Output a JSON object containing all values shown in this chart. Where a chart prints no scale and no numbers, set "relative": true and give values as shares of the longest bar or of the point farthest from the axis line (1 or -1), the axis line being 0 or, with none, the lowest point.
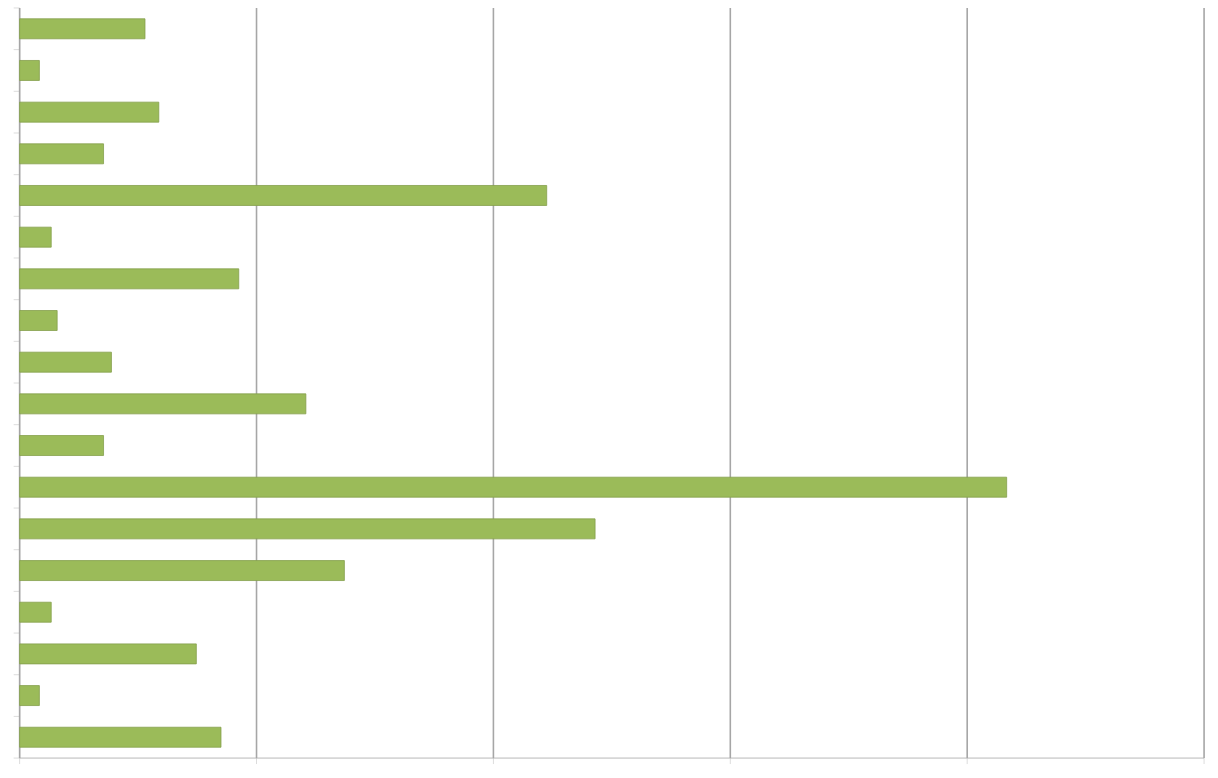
{
  "chart_data": {
    "type": "bar",
    "orientation": "horizontal",
    "relative": true,
    "grid": "x",
    "color": "#9bbb59",
    "categories": [
      null,
      null,
      null,
      null,
      null,
      null,
      null,
      null,
      null,
      null,
      null,
      null,
      null,
      null,
      null,
      null,
      null,
      null
    ],
    "values": [
      0.127,
      0.02,
      0.141,
      0.085,
      0.534,
      0.032,
      0.222,
      0.038,
      0.093,
      0.29,
      0.085,
      1,
      0.583,
      0.329,
      0.032,
      0.179,
      0.02,
      0.204
    ]
  }
}
